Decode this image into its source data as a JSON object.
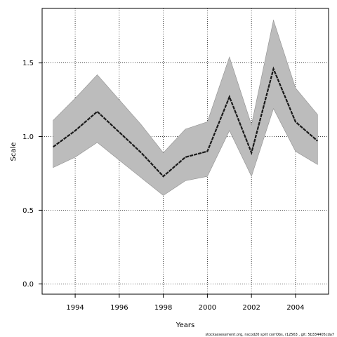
{
  "chart_data": {
    "type": "line",
    "title": "",
    "xlabel": "Years",
    "ylabel": "Scale",
    "xlim": [
      1992.5,
      2005.5
    ],
    "ylim": [
      -0.07,
      1.87
    ],
    "xticks": [
      1994,
      1996,
      1998,
      2000,
      2002,
      2004
    ],
    "yticks": [
      0.0,
      0.5,
      1.0,
      1.5
    ],
    "xtick_labels": [
      "1994",
      "1996",
      "1998",
      "2000",
      "2002",
      "2004"
    ],
    "ytick_labels": [
      "0.0",
      "0.5",
      "1.0",
      "1.5"
    ],
    "grid": true,
    "legend": "none",
    "colors": {
      "band": "#bcbcbc",
      "band_edge": "#8f8f8f",
      "line": "#1a1a1a",
      "grid": "#000000"
    },
    "x": [
      1993,
      1994,
      1995,
      1996,
      1997,
      1998,
      1999,
      2000,
      2001,
      2002,
      2003,
      2004,
      2005
    ],
    "series": [
      {
        "values": [
          0.93,
          1.04,
          1.17,
          1.03,
          0.89,
          0.73,
          0.86,
          0.9,
          1.27,
          0.89,
          1.46,
          1.1,
          0.97
        ]
      },
      {
        "role": "lower",
        "values": [
          0.79,
          0.86,
          0.96,
          0.84,
          0.72,
          0.6,
          0.7,
          0.73,
          1.04,
          0.73,
          1.19,
          0.9,
          0.81
        ]
      },
      {
        "role": "upper",
        "values": [
          1.11,
          1.26,
          1.42,
          1.25,
          1.08,
          0.89,
          1.05,
          1.1,
          1.54,
          1.08,
          1.79,
          1.33,
          1.15
        ]
      }
    ]
  },
  "footnote": "stockassessment.org, nscod20 split corrObs, r12563 , git: 5b334405cda7"
}
